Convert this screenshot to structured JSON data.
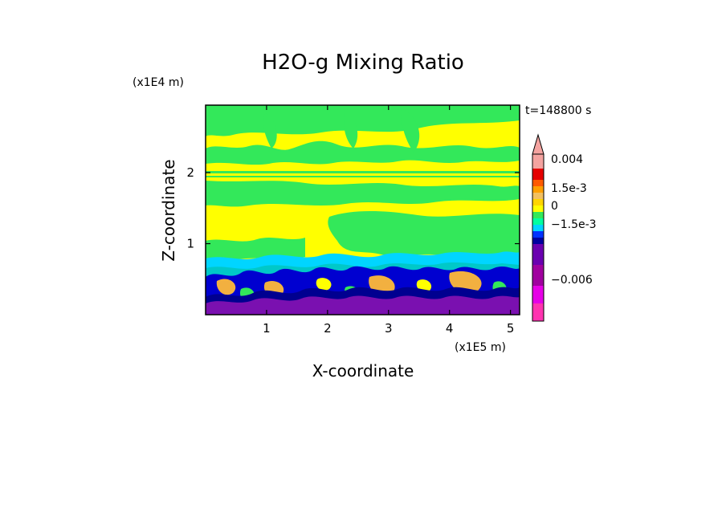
{
  "chart_data": {
    "type": "heatmap",
    "title": "H2O-g Mixing Ratio",
    "xlabel": "X-coordinate",
    "ylabel": "Z-coordinate",
    "x_unit": "(x1E5 m)",
    "y_unit": "(x1E4 m)",
    "time_label": "t=148800 s",
    "xlim": [
      0,
      5.15
    ],
    "ylim": [
      0,
      2.95
    ],
    "x_ticks": [
      1,
      2,
      3,
      4,
      5
    ],
    "y_ticks": [
      1,
      2
    ],
    "colorbar": {
      "tick_labels": [
        "0.004",
        "1.5e-3",
        "0",
        "−1.5e-3",
        "−0.006"
      ],
      "levels": [
        {
          "value": 0.006,
          "color": "#f4a3a0"
        },
        {
          "value": 0.004,
          "color": "#e50000"
        },
        {
          "value": 0.003,
          "color": "#ff5a00"
        },
        {
          "value": 0.002,
          "color": "#ff9f00"
        },
        {
          "value": 0.0015,
          "color": "#f2c060"
        },
        {
          "value": 0.001,
          "color": "#ffd500"
        },
        {
          "value": 0.0005,
          "color": "#ffff00"
        },
        {
          "value": 0,
          "color": "#33e85a"
        },
        {
          "value": -0.0005,
          "color": "#00ffa0"
        },
        {
          "value": -0.001,
          "color": "#00d5ff"
        },
        {
          "value": -0.0015,
          "color": "#0032ff"
        },
        {
          "value": -0.002,
          "color": "#0000a0"
        },
        {
          "value": -0.003,
          "color": "#6a00b0"
        },
        {
          "value": -0.0045,
          "color": "#a0009f"
        },
        {
          "value": -0.006,
          "color": "#e600e6"
        },
        {
          "value": -0.008,
          "color": "#ff33b0"
        }
      ]
    },
    "palette": {
      "background": "#ffffff",
      "green": "#33e85a",
      "yellow": "#ffff00",
      "cyan": "#00d5ff",
      "teal": "#00c8c8",
      "blue": "#0000d0",
      "navy": "#000090",
      "purple": "#7a10b0",
      "orange": "#f2b040"
    }
  }
}
